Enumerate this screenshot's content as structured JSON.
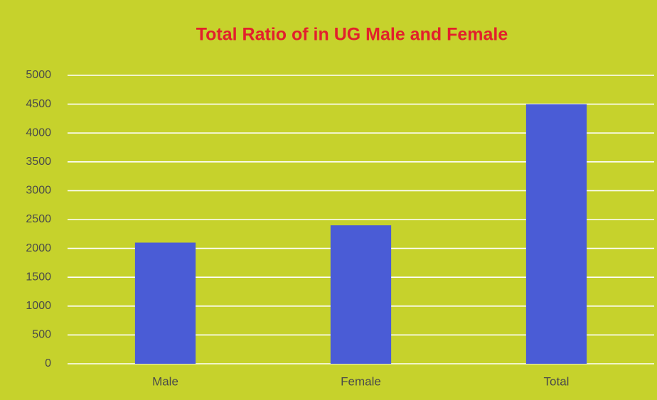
{
  "chart_data": {
    "type": "bar",
    "title": "Total Ratio of in UG Male and Female",
    "categories": [
      "Male",
      "Female",
      "Total"
    ],
    "values": [
      2100,
      2400,
      4500
    ],
    "color": "#4a5cd6",
    "ylim": [
      0,
      5000
    ],
    "yticks": [
      0,
      500,
      1000,
      1500,
      2000,
      2500,
      3000,
      3500,
      4000,
      4500,
      5000
    ],
    "grid": true
  }
}
